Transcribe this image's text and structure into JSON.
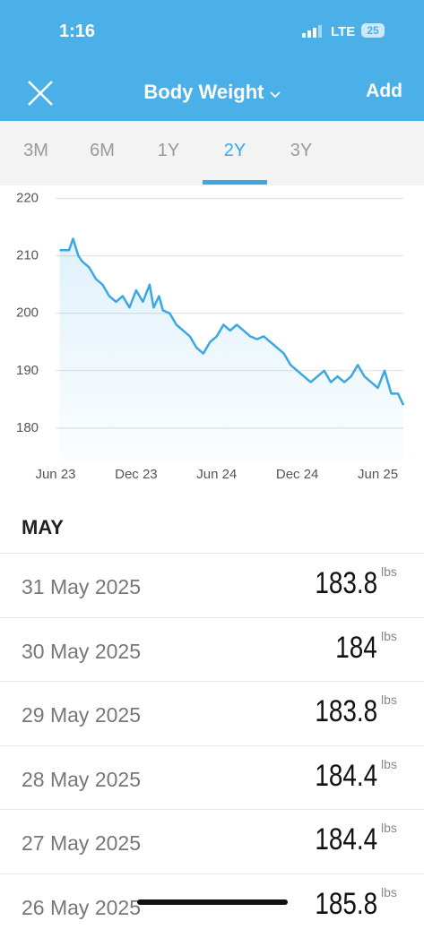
{
  "status_bar": {
    "time": "1:16",
    "network": "LTE",
    "battery": "25"
  },
  "header": {
    "title": "Body Weight",
    "action": "Add"
  },
  "tabs": {
    "items": [
      "3M",
      "6M",
      "1Y",
      "2Y",
      "3Y"
    ],
    "active": 3
  },
  "chart_data": {
    "type": "area",
    "color": "#3aa8e3",
    "grid": true,
    "x": [
      0.3,
      1,
      1.3,
      1.7,
      2,
      2.5,
      3,
      3.5,
      4,
      4.5,
      5,
      5.5,
      6,
      6.5,
      7,
      7.3,
      7.7,
      8,
      8.5,
      9,
      9.5,
      10,
      10.5,
      11,
      11.5,
      12,
      12.5,
      13,
      13.5,
      14,
      14.5,
      15,
      15.5,
      16,
      16.5,
      17,
      17.5,
      18,
      18.5,
      19,
      19.5,
      20,
      20.5,
      21,
      21.5,
      22,
      22.5,
      23,
      23.5,
      24,
      24.5,
      25,
      25.5,
      25.9
    ],
    "values": [
      211,
      211,
      213,
      210,
      209,
      208,
      206,
      205,
      203,
      202,
      203,
      201,
      204,
      202,
      205,
      201,
      203,
      200.5,
      200,
      198,
      197,
      196,
      194,
      193,
      195,
      196,
      198,
      197,
      198,
      197,
      196,
      195.5,
      196,
      195,
      194,
      193,
      191,
      190,
      189,
      188,
      189,
      190,
      188,
      189,
      188,
      189,
      191,
      189,
      188,
      187,
      190,
      186,
      186,
      184
    ],
    "xlim": [
      0,
      25.9
    ],
    "xticks": [
      {
        "value": 0,
        "label": "Jun 23"
      },
      {
        "value": 6,
        "label": "Dec 23"
      },
      {
        "value": 12,
        "label": "Jun 24"
      },
      {
        "value": 18,
        "label": "Dec 24"
      },
      {
        "value": 24,
        "label": "Jun 25"
      }
    ],
    "ylim": [
      174.2,
      221.5
    ],
    "yticks": [
      180,
      190,
      200,
      210,
      220
    ]
  },
  "log": {
    "section": "MAY",
    "rows": [
      {
        "date": "31 May 2025",
        "weight": 183.8,
        "unit": "lbs"
      },
      {
        "date": "30 May 2025",
        "weight": 184,
        "unit": "lbs"
      },
      {
        "date": "29 May 2025",
        "weight": 183.8,
        "unit": "lbs"
      },
      {
        "date": "28 May 2025",
        "weight": 184.4,
        "unit": "lbs"
      },
      {
        "date": "27 May 2025",
        "weight": 184.4,
        "unit": "lbs"
      },
      {
        "date": "26 May 2025",
        "weight": 185.8,
        "unit": "lbs"
      }
    ]
  }
}
